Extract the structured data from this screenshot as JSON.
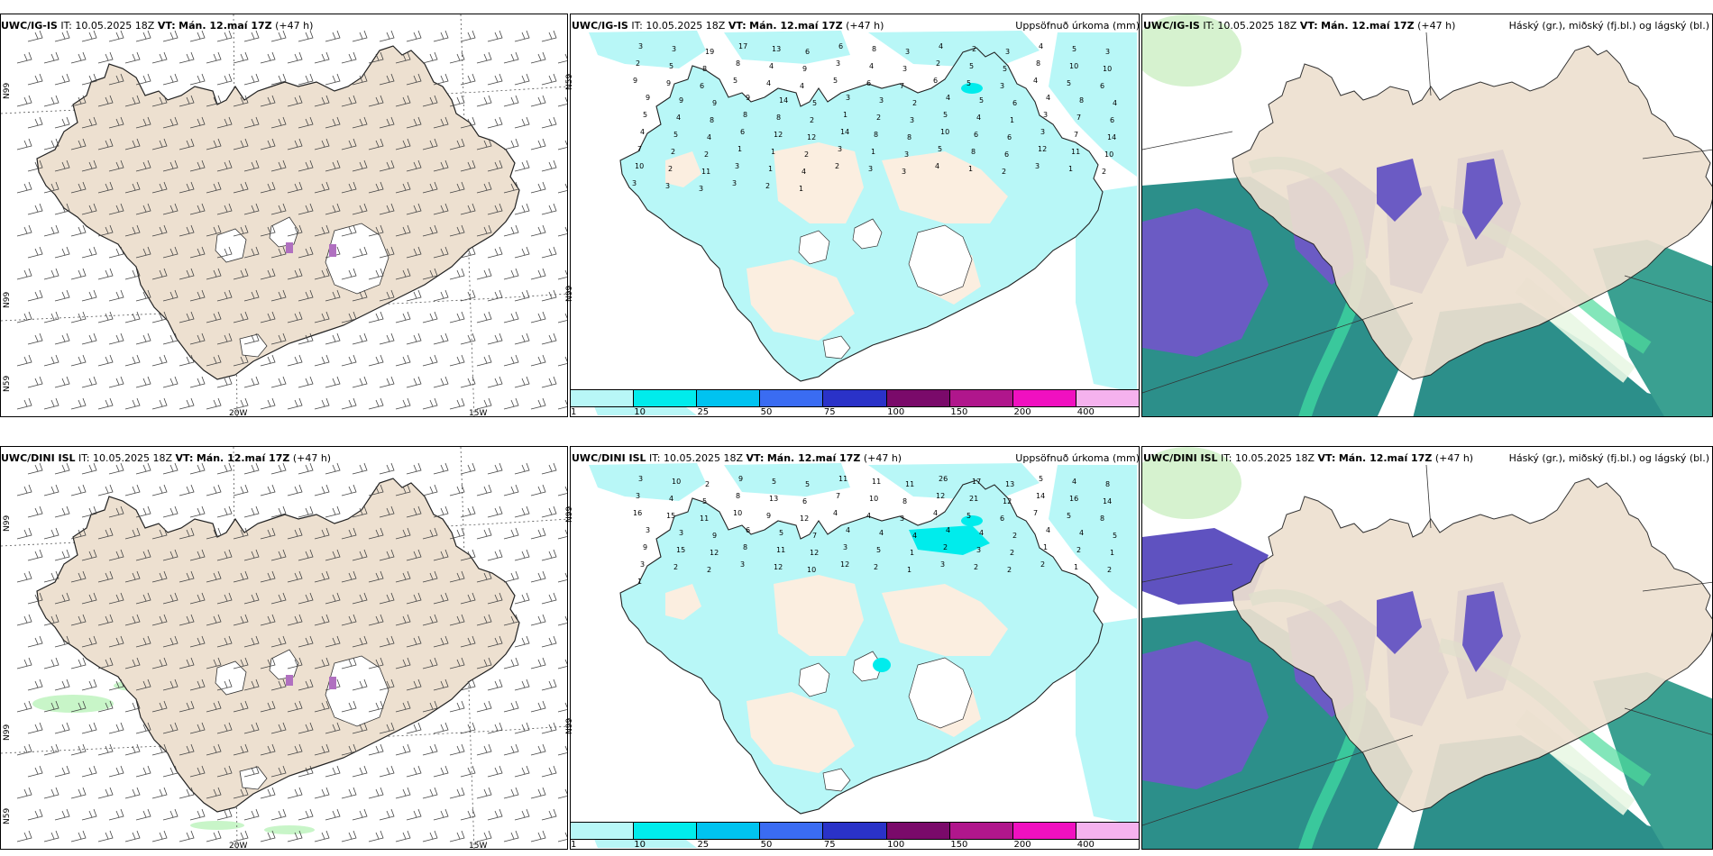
{
  "rows": [
    {
      "model": "UWC/IG-IS",
      "it_label": "IT:",
      "it_value": "10.05.2025 18Z",
      "vt_label": "VT:",
      "vt_value": "Mán. 12.maí 17Z",
      "lead": "(+47 h)",
      "wind_axis": {
        "lon_left": "20W",
        "lon_right": "15W",
        "lat_top": "N99",
        "lat_mid": "N99",
        "lat_bot": "N59"
      },
      "precip_lat": "N59",
      "precip_lat2": "N99"
    },
    {
      "model": "UWC/DINI ISL",
      "it_label": "IT:",
      "it_value": "10.05.2025 18Z",
      "vt_label": "VT:",
      "vt_value": "Mán. 12.maí 17Z",
      "lead": "(+47 h)",
      "wind_axis": {
        "lon_left": "20W",
        "lon_right": "15W",
        "lat_top": "N99",
        "lat_mid": "N99",
        "lat_bot": "N59"
      },
      "precip_lat": "N99",
      "precip_lat2": "N99"
    }
  ],
  "precip_title": "Uppsöfnuð úrkoma (mm)",
  "cloud_title": "Háský (gr.), miðský (fj.bl.) og lágský (bl.)",
  "legend": {
    "labels": [
      "1",
      "10",
      "25",
      "50",
      "75",
      "100",
      "150",
      "200",
      "400"
    ],
    "colors": [
      "#b8f7f7",
      "#00ecec",
      "#00c3f0",
      "#3a6cf2",
      "#2a32c8",
      "#7a0a6a",
      "#b0168c",
      "#f010c0",
      "#f5b2ee"
    ]
  },
  "precip_values_top": [
    "3",
    "3",
    "19",
    "17",
    "13",
    "6",
    "6",
    "8",
    "3",
    "4",
    "2",
    "3",
    "4",
    "5",
    "3",
    "2",
    "5",
    "8",
    "8",
    "4",
    "9",
    "3",
    "4",
    "3",
    "2",
    "5",
    "5",
    "8",
    "10",
    "10",
    "9",
    "9",
    "6",
    "5",
    "4",
    "4",
    "5",
    "6",
    "7",
    "6",
    "5",
    "3",
    "4",
    "5",
    "6",
    "9",
    "9",
    "9",
    "9",
    "14",
    "5",
    "3",
    "3",
    "2",
    "4",
    "5",
    "6",
    "4",
    "8",
    "4",
    "5",
    "4",
    "8",
    "8",
    "8",
    "2",
    "1",
    "2",
    "3",
    "5",
    "4",
    "1",
    "3",
    "7",
    "6",
    "4",
    "5",
    "4",
    "6",
    "12",
    "12",
    "14",
    "8",
    "8",
    "10",
    "6",
    "6",
    "3",
    "7",
    "14",
    "7",
    "2",
    "2",
    "1",
    "1",
    "2",
    "3",
    "1",
    "3",
    "5",
    "8",
    "6",
    "12",
    "11",
    "10",
    "10",
    "2",
    "11",
    "3",
    "1",
    "4",
    "2",
    "3",
    "3",
    "4",
    "1",
    "2",
    "3",
    "1",
    "2",
    "3",
    "3",
    "3",
    "3",
    "2",
    "1"
  ],
  "precip_values_bottom": [
    "3",
    "10",
    "2",
    "9",
    "5",
    "5",
    "11",
    "11",
    "11",
    "26",
    "17",
    "13",
    "5",
    "4",
    "8",
    "3",
    "4",
    "5",
    "8",
    "13",
    "6",
    "7",
    "10",
    "8",
    "12",
    "21",
    "12",
    "14",
    "16",
    "14",
    "16",
    "15",
    "11",
    "10",
    "9",
    "12",
    "4",
    "4",
    "3",
    "4",
    "5",
    "6",
    "7",
    "5",
    "8",
    "3",
    "3",
    "9",
    "6",
    "5",
    "7",
    "4",
    "4",
    "4",
    "4",
    "4",
    "2",
    "4",
    "4",
    "5",
    "9",
    "15",
    "12",
    "8",
    "11",
    "12",
    "3",
    "5",
    "1",
    "2",
    "3",
    "2",
    "1",
    "2",
    "1",
    "3",
    "2",
    "2",
    "3",
    "12",
    "10",
    "12",
    "2",
    "1",
    "3",
    "2",
    "2",
    "2",
    "1",
    "2",
    "1"
  ]
}
